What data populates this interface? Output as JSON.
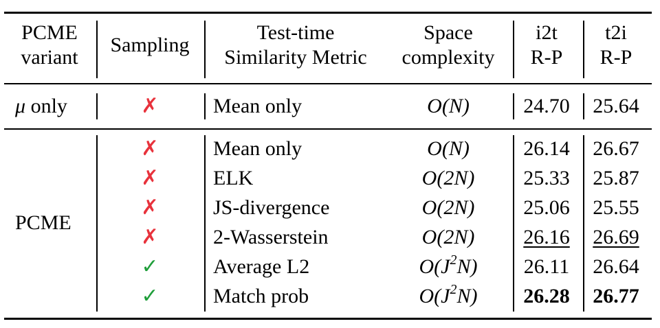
{
  "table": {
    "headers": {
      "variant": [
        "PCME",
        "variant"
      ],
      "sampling": "Sampling",
      "metric": [
        "Test-time",
        "Similarity Metric"
      ],
      "space": [
        "Space",
        "complexity"
      ],
      "i2t": [
        "i2t",
        "R-P"
      ],
      "t2i": [
        "t2i",
        "R-P"
      ]
    },
    "group1": {
      "variant": "only",
      "variant_symbol": "μ",
      "rows": [
        {
          "sampling": "cross",
          "metric": "Mean only",
          "space": "O(N)",
          "i2t": "24.70",
          "t2i": "25.64"
        }
      ]
    },
    "group2": {
      "variant": "PCME",
      "rows": [
        {
          "sampling": "cross",
          "metric": "Mean only",
          "space": "O(N)",
          "i2t": "26.14",
          "t2i": "26.67"
        },
        {
          "sampling": "cross",
          "metric": "ELK",
          "space": "O(2N)",
          "i2t": "25.33",
          "t2i": "25.87"
        },
        {
          "sampling": "cross",
          "metric": "JS-divergence",
          "space": "O(2N)",
          "i2t": "25.06",
          "t2i": "25.55"
        },
        {
          "sampling": "cross",
          "metric": "2-Wasserstein",
          "space": "O(2N)",
          "i2t": "26.16",
          "t2i": "26.69",
          "style": "underline"
        },
        {
          "sampling": "check",
          "metric": "Average L2",
          "space": "O(J^2N)",
          "i2t": "26.11",
          "t2i": "26.64"
        },
        {
          "sampling": "check",
          "metric": "Match prob",
          "space": "O(J^2N)",
          "i2t": "26.28",
          "t2i": "26.77",
          "style": "bold"
        }
      ]
    },
    "marks": {
      "cross": "✗",
      "check": "✓"
    },
    "colors": {
      "cross": "#e8323c",
      "check": "#1f9e3a",
      "rules": "#000000"
    }
  }
}
